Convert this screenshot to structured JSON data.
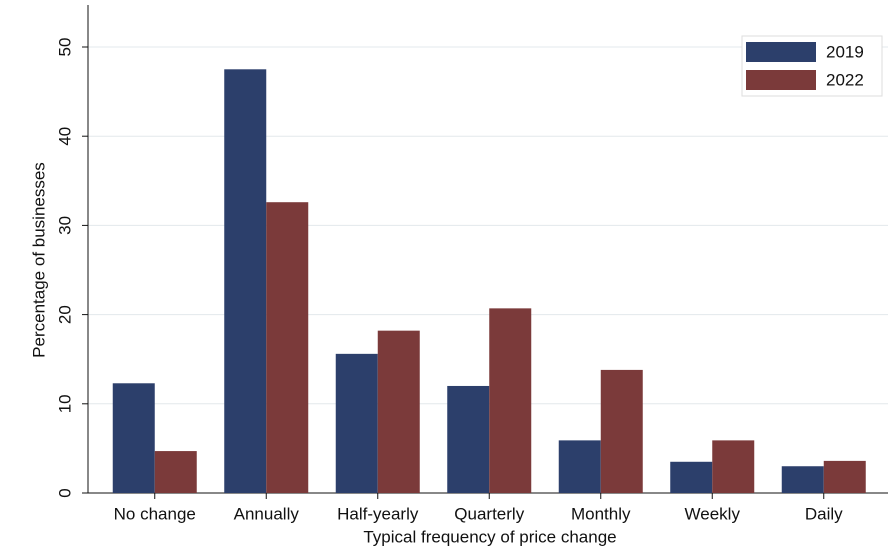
{
  "chart_data": {
    "type": "bar",
    "xlabel": "Typical frequency of price change",
    "ylabel": "Percentage of businesses",
    "categories": [
      "No change",
      "Annually",
      "Half-yearly",
      "Quarterly",
      "Monthly",
      "Weekly",
      "Daily"
    ],
    "series": [
      {
        "name": "2019",
        "color": "#2c3f6b",
        "values": [
          12.3,
          47.5,
          15.6,
          12.0,
          5.9,
          3.5,
          3.0
        ]
      },
      {
        "name": "2022",
        "color": "#7b3a3a",
        "values": [
          4.7,
          32.6,
          18.2,
          20.7,
          13.8,
          5.9,
          3.6
        ]
      }
    ],
    "ylim": [
      0,
      50
    ],
    "yticks": [
      0,
      10,
      20,
      30,
      40,
      50
    ],
    "grid": true,
    "legend": "top-right"
  }
}
